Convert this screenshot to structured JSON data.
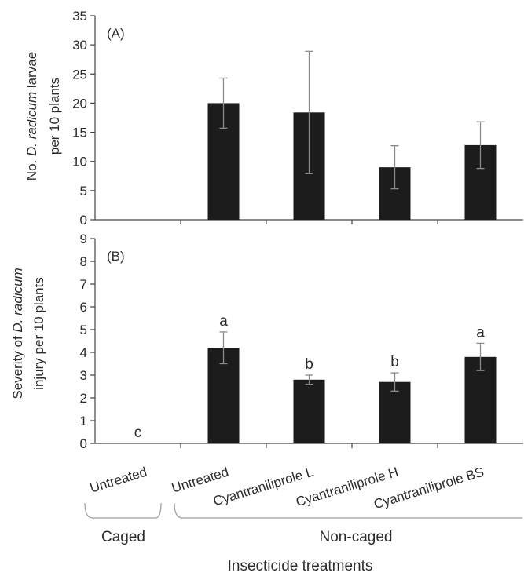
{
  "chart_data": [
    {
      "type": "bar",
      "panel_label": "(A)",
      "ylabel_parts": [
        "No. ",
        "D. radicum",
        " larvae"
      ],
      "ylabel_line2": "per 10 plants",
      "ylim": [
        0,
        35
      ],
      "yticks": [
        "0",
        "5",
        "10",
        "15",
        "20",
        "25",
        "30",
        "35"
      ],
      "categories": [
        "Untreated",
        "Untreated",
        "Cyantraniliprole L",
        "Cyantraniliprole H",
        "Cyantraniliprole BS"
      ],
      "values": [
        0,
        20.0,
        18.4,
        9.0,
        12.8
      ],
      "errors": [
        0,
        4.3,
        10.5,
        3.7,
        4.0
      ],
      "letters": [
        "",
        "",
        "",
        "",
        ""
      ],
      "bar_color": "#1c1c1c"
    },
    {
      "type": "bar",
      "panel_label": "(B)",
      "ylabel_line1": "Severity of D. radicum",
      "ylabel_line1_parts": [
        "Severity of ",
        "D. radicum"
      ],
      "ylabel_line2": "injury per 10 plants",
      "ylim": [
        0,
        9
      ],
      "yticks": [
        "0",
        "1",
        "2",
        "3",
        "4",
        "5",
        "6",
        "7",
        "8",
        "9"
      ],
      "categories": [
        "Untreated",
        "Untreated",
        "Cyantraniliprole L",
        "Cyantraniliprole H",
        "Cyantraniliprole BS"
      ],
      "values": [
        0,
        4.2,
        2.8,
        2.7,
        3.8
      ],
      "errors": [
        0,
        0.7,
        0.2,
        0.4,
        0.6
      ],
      "letters": [
        "c",
        "a",
        "b",
        "b",
        "a"
      ],
      "bar_color": "#1c1c1c"
    }
  ],
  "x_categories": [
    "Untreated",
    "Untreated",
    "Cyantraniliprole L",
    "Cyantraniliprole H",
    "Cyantraniliprole BS"
  ],
  "groups": [
    {
      "label": "Caged"
    },
    {
      "label": "Non-caged"
    }
  ],
  "xlabel": "Insecticide treatments"
}
